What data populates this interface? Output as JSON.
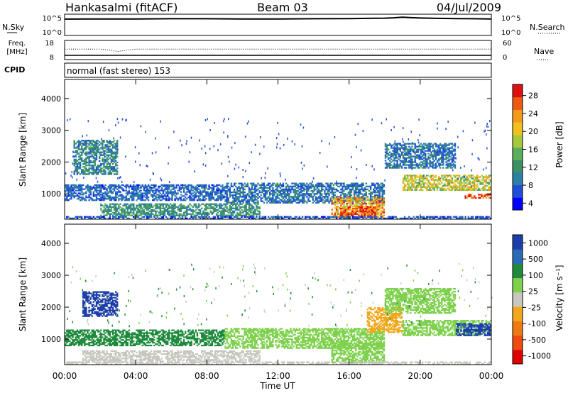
{
  "header": {
    "station": "Hankasalmi (fitACF)",
    "beam": "Beam 03",
    "date": "04/Jul/2009"
  },
  "noise_panel": {
    "left_label": "N.Sky",
    "right_label": "N.Search",
    "left_ticks": [
      "10^5",
      "10^0"
    ],
    "right_ticks": [
      "10^5",
      "10^0"
    ]
  },
  "freq_panel": {
    "label_line1": "Freq.",
    "label_line2": "[MHz]",
    "right_label": "Nave",
    "left_ticks": [
      "18",
      "8"
    ],
    "right_ticks": [
      "60",
      "0"
    ]
  },
  "cpid_panel": {
    "label": "CPID",
    "text": "normal (fast stereo) 153"
  },
  "x_axis": {
    "label": "Time UT",
    "ticks": [
      "00:00",
      "04:00",
      "08:00",
      "12:00",
      "16:00",
      "20:00",
      "00:00"
    ]
  },
  "colors": {
    "power_scale": [
      "#0000ff",
      "#1f4fd8",
      "#2c7fa6",
      "#3d8f64",
      "#5cae5c",
      "#a8c83c",
      "#f0c020",
      "#f39a1a",
      "#ee5a12",
      "#e01010"
    ],
    "velocity_scale": [
      "#1c3ea8",
      "#2a6ab8",
      "#1e8a3c",
      "#7fd14e",
      "#c8c8c0",
      "#f2a81c",
      "#ef7a14",
      "#ef4a10",
      "#e00000"
    ]
  },
  "power_colorbar": {
    "label": "Power [dB]",
    "ticks": [
      "28",
      "24",
      "20",
      "16",
      "12",
      "8",
      "4"
    ]
  },
  "velocity_colorbar": {
    "label": "Velocity [m s⁻¹]",
    "ticks": [
      "1000",
      "500",
      "100",
      "25",
      "-25",
      "-100",
      "-500",
      "-1000"
    ]
  },
  "chart_data": [
    {
      "type": "line",
      "panel": "noise",
      "series": [
        {
          "name": "N.Sky",
          "x": [
            0,
            2,
            4,
            6,
            8,
            10,
            12,
            14,
            16,
            17,
            18,
            18.5,
            19,
            19.5,
            20,
            21,
            22,
            23,
            24
          ],
          "y_log10": [
            4.05,
            4.1,
            4.1,
            4.15,
            4.15,
            4.1,
            4.1,
            4.15,
            4.2,
            4.25,
            4.3,
            4.4,
            4.55,
            4.45,
            4.35,
            4.25,
            4.2,
            4.15,
            4.1
          ]
        }
      ],
      "xlim": [
        0,
        24
      ],
      "ylim_log10": [
        0,
        5
      ]
    },
    {
      "type": "scatter",
      "panel": "frequency",
      "series": [
        {
          "name": "Nave",
          "x": [
            0,
            2,
            2.5,
            3,
            3.5,
            4,
            8,
            12,
            16,
            20,
            24
          ],
          "y": [
            33,
            33,
            30,
            25,
            30,
            33,
            33,
            33,
            33,
            33,
            33
          ]
        }
      ],
      "xlim": [
        0,
        24
      ],
      "ylim": [
        0,
        60
      ]
    },
    {
      "type": "heatmap",
      "panel": "power",
      "xlabel": "Time UT",
      "ylabel": "Slant Range [km]",
      "xlim": [
        0,
        24
      ],
      "ylim": [
        200,
        4600
      ],
      "yticks": [
        1000,
        2000,
        3000,
        4000
      ],
      "colorbar": {
        "label": "Power [dB]",
        "range": [
          0,
          30
        ]
      },
      "regions": [
        {
          "t0": 0,
          "t1": 9,
          "r0": 780,
          "r1": 1300,
          "value": 6
        },
        {
          "t0": 2,
          "t1": 11,
          "r0": 300,
          "r1": 700,
          "value": 10
        },
        {
          "t0": 9,
          "t1": 18,
          "r0": 700,
          "r1": 1350,
          "value": 7
        },
        {
          "t0": 15,
          "t1": 18,
          "r0": 250,
          "r1": 900,
          "value": 22
        },
        {
          "t0": 15.5,
          "t1": 17.5,
          "r0": 300,
          "r1": 600,
          "value": 27
        },
        {
          "t0": 19,
          "t1": 24,
          "r0": 1100,
          "r1": 1600,
          "value": 17
        },
        {
          "t0": 22.5,
          "t1": 24,
          "r0": 850,
          "r1": 1000,
          "value": 29
        },
        {
          "t0": 18,
          "t1": 22,
          "r0": 1800,
          "r1": 2600,
          "value": 7
        },
        {
          "t0": 0.5,
          "t1": 3,
          "r0": 1600,
          "r1": 2700,
          "value": 9
        },
        {
          "t0": 0,
          "t1": 24,
          "r0": 200,
          "r1": 300,
          "value": 5
        }
      ]
    },
    {
      "type": "heatmap",
      "panel": "velocity",
      "xlabel": "Time UT",
      "ylabel": "Slant Range [km]",
      "xlim": [
        0,
        24
      ],
      "ylim": [
        200,
        4600
      ],
      "yticks": [
        1000,
        2000,
        3000,
        4000
      ],
      "colorbar": {
        "label": "Velocity [m s⁻¹]",
        "range": [
          -1000,
          1000
        ]
      },
      "regions": [
        {
          "t0": 0,
          "t1": 9,
          "r0": 780,
          "r1": 1300,
          "value": 60
        },
        {
          "t0": 1,
          "t1": 11,
          "r0": 280,
          "r1": 650,
          "value": -60
        },
        {
          "t0": 9,
          "t1": 18,
          "r0": 700,
          "r1": 1350,
          "value": 0
        },
        {
          "t0": 15,
          "t1": 18,
          "r0": 250,
          "r1": 900,
          "value": 0
        },
        {
          "t0": 19,
          "t1": 24,
          "r0": 1100,
          "r1": 1600,
          "value": 0
        },
        {
          "t0": 22,
          "t1": 24,
          "r0": 1100,
          "r1": 1500,
          "value": 600
        },
        {
          "t0": 1,
          "t1": 3,
          "r0": 1700,
          "r1": 2500,
          "value": 700
        },
        {
          "t0": 17,
          "t1": 19,
          "r0": 1200,
          "r1": 2000,
          "value": -200
        },
        {
          "t0": 18,
          "t1": 22,
          "r0": 1800,
          "r1": 2600,
          "value": 0
        },
        {
          "t0": 0,
          "t1": 24,
          "r0": 200,
          "r1": 300,
          "value": -40
        }
      ]
    }
  ]
}
